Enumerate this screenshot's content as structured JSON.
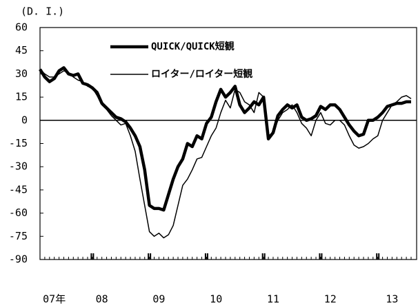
{
  "chart_data": {
    "type": "line",
    "y_label": "(D. I.)",
    "categories": [
      null,
      null,
      null,
      "07年",
      null,
      null,
      null,
      null,
      null,
      null,
      null,
      null,
      null,
      "08",
      null,
      null,
      null,
      null,
      null,
      null,
      null,
      null,
      null,
      null,
      null,
      "09",
      null,
      null,
      null,
      null,
      null,
      null,
      null,
      null,
      null,
      null,
      null,
      "10",
      null,
      null,
      null,
      null,
      null,
      null,
      null,
      null,
      null,
      null,
      null,
      "11",
      null,
      null,
      null,
      null,
      null,
      null,
      null,
      null,
      null,
      null,
      null,
      "12",
      null,
      null,
      null,
      null,
      null,
      null,
      null,
      null,
      null,
      null,
      null,
      null,
      "13",
      null,
      null,
      null,
      null
    ],
    "series": [
      {
        "name": "QUICK/QUICK短観",
        "color": "#000000",
        "values": [
          33,
          28,
          25,
          27,
          32,
          34,
          30,
          29,
          30,
          24,
          23,
          21,
          18,
          11,
          8,
          5,
          2,
          1,
          -1,
          -5,
          -10,
          -17,
          -32,
          -55,
          -57,
          -57,
          -58,
          -48,
          -38,
          -30,
          -25,
          -15,
          -17,
          -10,
          -12,
          -2,
          2,
          12,
          20,
          15,
          18,
          22,
          10,
          5,
          8,
          12,
          10,
          15,
          -12,
          -8,
          3,
          7,
          10,
          8,
          10,
          2,
          0,
          1,
          3,
          9,
          7,
          10,
          10,
          7,
          2,
          -3,
          -7,
          -10,
          -9,
          0,
          0,
          2,
          5,
          9,
          10,
          11,
          11,
          12,
          12
        ]
      },
      {
        "name": "ロイター/ロイター短観",
        "color": "#000000",
        "values": [
          33,
          30,
          28,
          28,
          30,
          32,
          31,
          28,
          26,
          25,
          22,
          21,
          16,
          10,
          7,
          3,
          0,
          -3,
          -2,
          -10,
          -20,
          -38,
          -55,
          -72,
          -75,
          -73,
          -76,
          -74,
          -68,
          -55,
          -42,
          -38,
          -32,
          -25,
          -24,
          -17,
          -10,
          -5,
          5,
          13,
          8,
          20,
          18,
          12,
          10,
          5,
          18,
          15,
          -10,
          -8,
          0,
          5,
          7,
          10,
          5,
          -2,
          -5,
          -10,
          0,
          5,
          -2,
          -3,
          0,
          0,
          -3,
          -10,
          -16,
          -18,
          -17,
          -15,
          -12,
          -10,
          0,
          5,
          10,
          12,
          15,
          16,
          14
        ]
      }
    ],
    "ylim": [
      -90,
      60
    ],
    "yticks": [
      -90,
      -75,
      -60,
      -45,
      -30,
      -15,
      0,
      15,
      30,
      45,
      60
    ]
  }
}
